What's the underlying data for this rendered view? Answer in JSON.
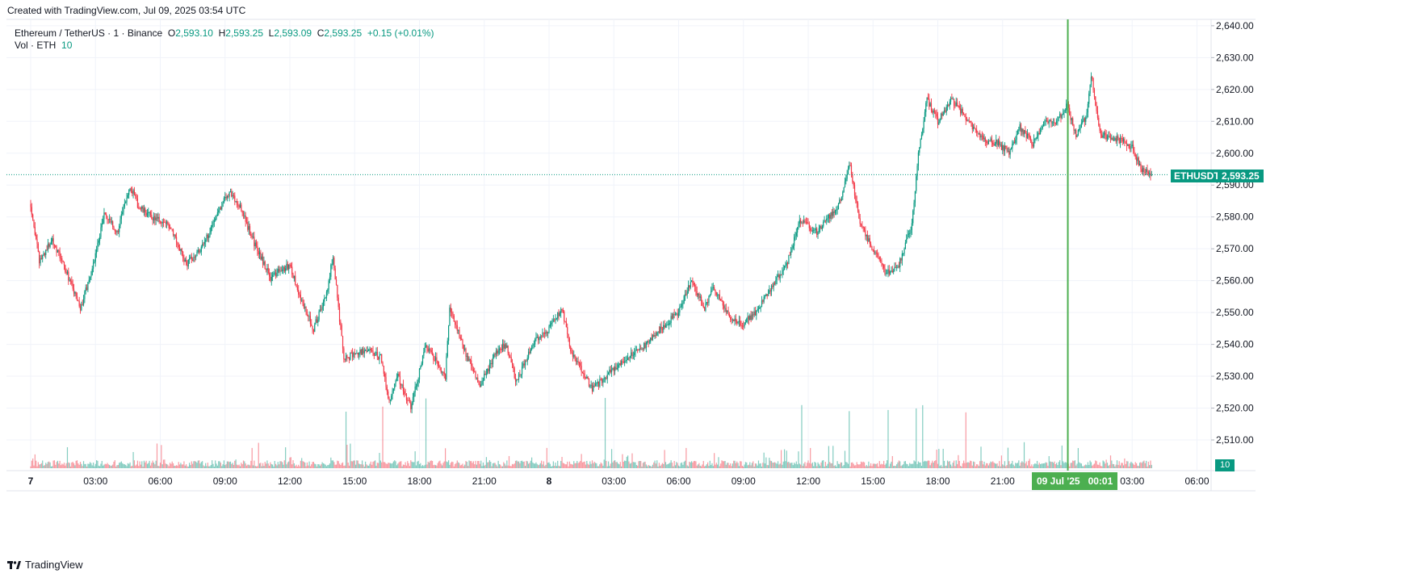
{
  "header": {
    "created_text": "Created with TradingView.com, Jul 09, 2025 03:54 UTC"
  },
  "legend": {
    "symbol": "Ethereum / TetherUS · 1 · Binance",
    "o_label": "O",
    "o_value": "2,593.10",
    "h_label": "H",
    "h_value": "2,593.25",
    "l_label": "L",
    "l_value": "2,593.09",
    "c_label": "C",
    "c_value": "2,593.25",
    "change": "+0.15 (+0.01%)",
    "vol_label": "Vol · ETH",
    "vol_value": "10"
  },
  "price_tag": {
    "ticker": "ETHUSDT",
    "price": "2,593.25"
  },
  "volume_tag": "10",
  "crosshair_label": {
    "date": "09 Jul '25",
    "time": "00:01"
  },
  "footer": {
    "brand": "TradingView"
  },
  "colors": {
    "up": "#089981",
    "down": "#f23645",
    "crosshair": "#4caf50",
    "grid": "#f0f3fa"
  },
  "chart_data": {
    "type": "candlestick",
    "title": "Ethereum / TetherUS · 1 · Binance",
    "ylim": [
      2500,
      2645
    ],
    "y_ticks": [
      "2,510.00",
      "2,520.00",
      "2,530.00",
      "2,540.00",
      "2,550.00",
      "2,560.00",
      "2,570.00",
      "2,580.00",
      "2,590.00",
      "2,600.00",
      "2,610.00",
      "2,620.00",
      "2,630.00",
      "2,640.00"
    ],
    "x_ticks": [
      "7",
      "03:00",
      "06:00",
      "09:00",
      "12:00",
      "15:00",
      "18:00",
      "21:00",
      "8",
      "03:00",
      "06:00",
      "09:00",
      "12:00",
      "15:00",
      "18:00",
      "21:00",
      "03:00",
      "06:00"
    ],
    "x_tick_hours": [
      0,
      3,
      6,
      9,
      12,
      15,
      18,
      21,
      24,
      27,
      30,
      33,
      36,
      39,
      42,
      45,
      51,
      54
    ],
    "last_price": 2593.25,
    "crosshair_hour": 48.02,
    "data_end_hour": 51.9,
    "price_path": [
      [
        0,
        2584
      ],
      [
        0.4,
        2566
      ],
      [
        1,
        2573
      ],
      [
        1.7,
        2562
      ],
      [
        2.3,
        2551
      ],
      [
        2.9,
        2565
      ],
      [
        3.4,
        2581
      ],
      [
        4,
        2575
      ],
      [
        4.6,
        2590
      ],
      [
        5,
        2583
      ],
      [
        5.6,
        2580
      ],
      [
        6.5,
        2577
      ],
      [
        7.2,
        2565
      ],
      [
        8,
        2571
      ],
      [
        8.6,
        2581
      ],
      [
        9.2,
        2588
      ],
      [
        9.7,
        2583
      ],
      [
        10.4,
        2571
      ],
      [
        11.1,
        2561
      ],
      [
        12,
        2565
      ],
      [
        12.4,
        2556
      ],
      [
        13.1,
        2545
      ],
      [
        13.7,
        2556
      ],
      [
        14,
        2568
      ],
      [
        14.5,
        2535
      ],
      [
        14.9,
        2537
      ],
      [
        15.6,
        2538
      ],
      [
        16.2,
        2536
      ],
      [
        16.6,
        2522
      ],
      [
        17,
        2530
      ],
      [
        17.6,
        2520
      ],
      [
        18.3,
        2540
      ],
      [
        19.2,
        2530
      ],
      [
        19.4,
        2552
      ],
      [
        20.1,
        2538
      ],
      [
        20.8,
        2527
      ],
      [
        21.6,
        2538
      ],
      [
        22,
        2540
      ],
      [
        22.5,
        2528
      ],
      [
        23.2,
        2540
      ],
      [
        24,
        2545
      ],
      [
        24.6,
        2551
      ],
      [
        25,
        2538
      ],
      [
        26,
        2526
      ],
      [
        26.8,
        2531
      ],
      [
        27.6,
        2536
      ],
      [
        28.2,
        2538
      ],
      [
        29,
        2544
      ],
      [
        30,
        2550
      ],
      [
        30.6,
        2560
      ],
      [
        31.2,
        2551
      ],
      [
        31.6,
        2558
      ],
      [
        32.2,
        2550
      ],
      [
        32.9,
        2546
      ],
      [
        33.6,
        2550
      ],
      [
        34.4,
        2559
      ],
      [
        35,
        2565
      ],
      [
        35.6,
        2579
      ],
      [
        36.4,
        2575
      ],
      [
        37.1,
        2581
      ],
      [
        37.5,
        2585
      ],
      [
        37.9,
        2597
      ],
      [
        38.4,
        2578
      ],
      [
        39,
        2570
      ],
      [
        39.6,
        2562
      ],
      [
        40.2,
        2565
      ],
      [
        40.8,
        2578
      ],
      [
        41.1,
        2600
      ],
      [
        41.5,
        2617
      ],
      [
        42,
        2610
      ],
      [
        42.6,
        2617
      ],
      [
        43,
        2614
      ],
      [
        43.6,
        2608
      ],
      [
        44.2,
        2604
      ],
      [
        44.8,
        2603
      ],
      [
        45.3,
        2600
      ],
      [
        45.8,
        2608
      ],
      [
        46.4,
        2603
      ],
      [
        47,
        2611
      ],
      [
        47.4,
        2609
      ],
      [
        48,
        2615
      ],
      [
        48.4,
        2605
      ],
      [
        48.9,
        2612
      ],
      [
        49.1,
        2625
      ],
      [
        49.5,
        2606
      ],
      [
        50,
        2605
      ],
      [
        50.5,
        2604
      ],
      [
        51,
        2602
      ],
      [
        51.4,
        2595
      ],
      [
        51.9,
        2593.25
      ]
    ]
  }
}
